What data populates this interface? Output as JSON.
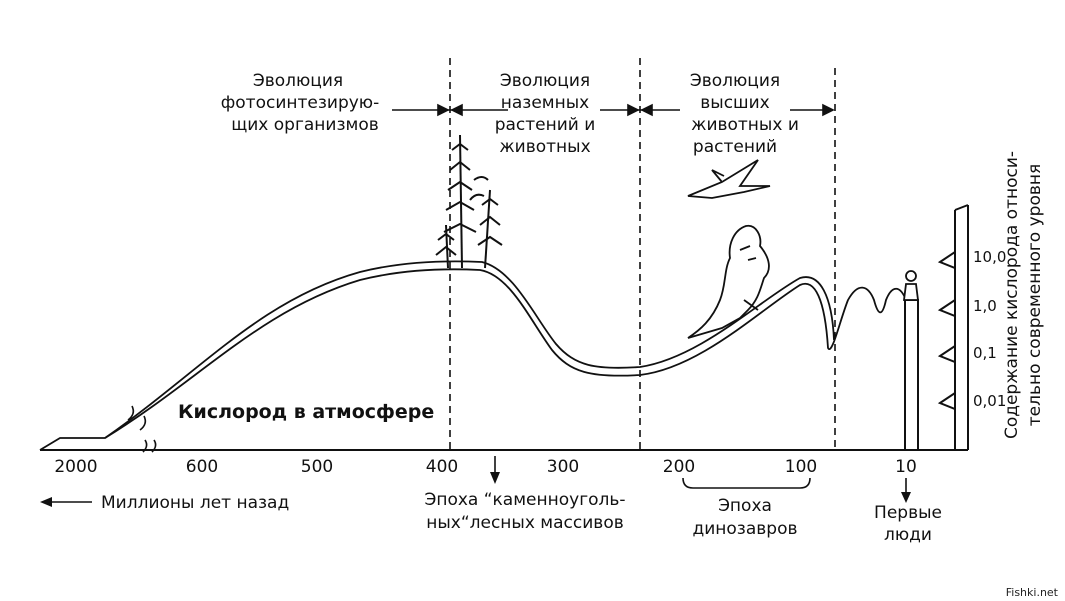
{
  "colors": {
    "ink": "#111111",
    "background": "#ffffff"
  },
  "header": {
    "era1": [
      "Эволюция",
      "фотосинтезирую-",
      "щих организмов"
    ],
    "era2": [
      "Эволюция",
      "наземных",
      "растений и",
      "животных"
    ],
    "era3": [
      "Эволюция",
      "высших",
      "животных и",
      "растений"
    ]
  },
  "curve_label": "Кислород в атмосфере",
  "x_ticks": [
    "2000",
    "600",
    "500",
    "400",
    "300",
    "200",
    "100",
    "10"
  ],
  "x_axis_label": "Миллионы лет назад",
  "annotations": {
    "coal": [
      "Эпоха “каменноуголь-",
      "ных“лесных массивов"
    ],
    "dinosaurs": [
      "Эпоха",
      "динозавров"
    ],
    "humans": [
      "Первые",
      "люди"
    ]
  },
  "right_scale": {
    "ticks": [
      "10,0",
      "1,0",
      "0,1",
      "0,01"
    ],
    "label": [
      "Содержание кислорода относи-",
      "тельно современного уровня"
    ]
  },
  "icons": [
    "tree-icon",
    "pterosaur-icon",
    "dinosaur-icon",
    "human-icon"
  ],
  "watermark": "Fishki.net"
}
